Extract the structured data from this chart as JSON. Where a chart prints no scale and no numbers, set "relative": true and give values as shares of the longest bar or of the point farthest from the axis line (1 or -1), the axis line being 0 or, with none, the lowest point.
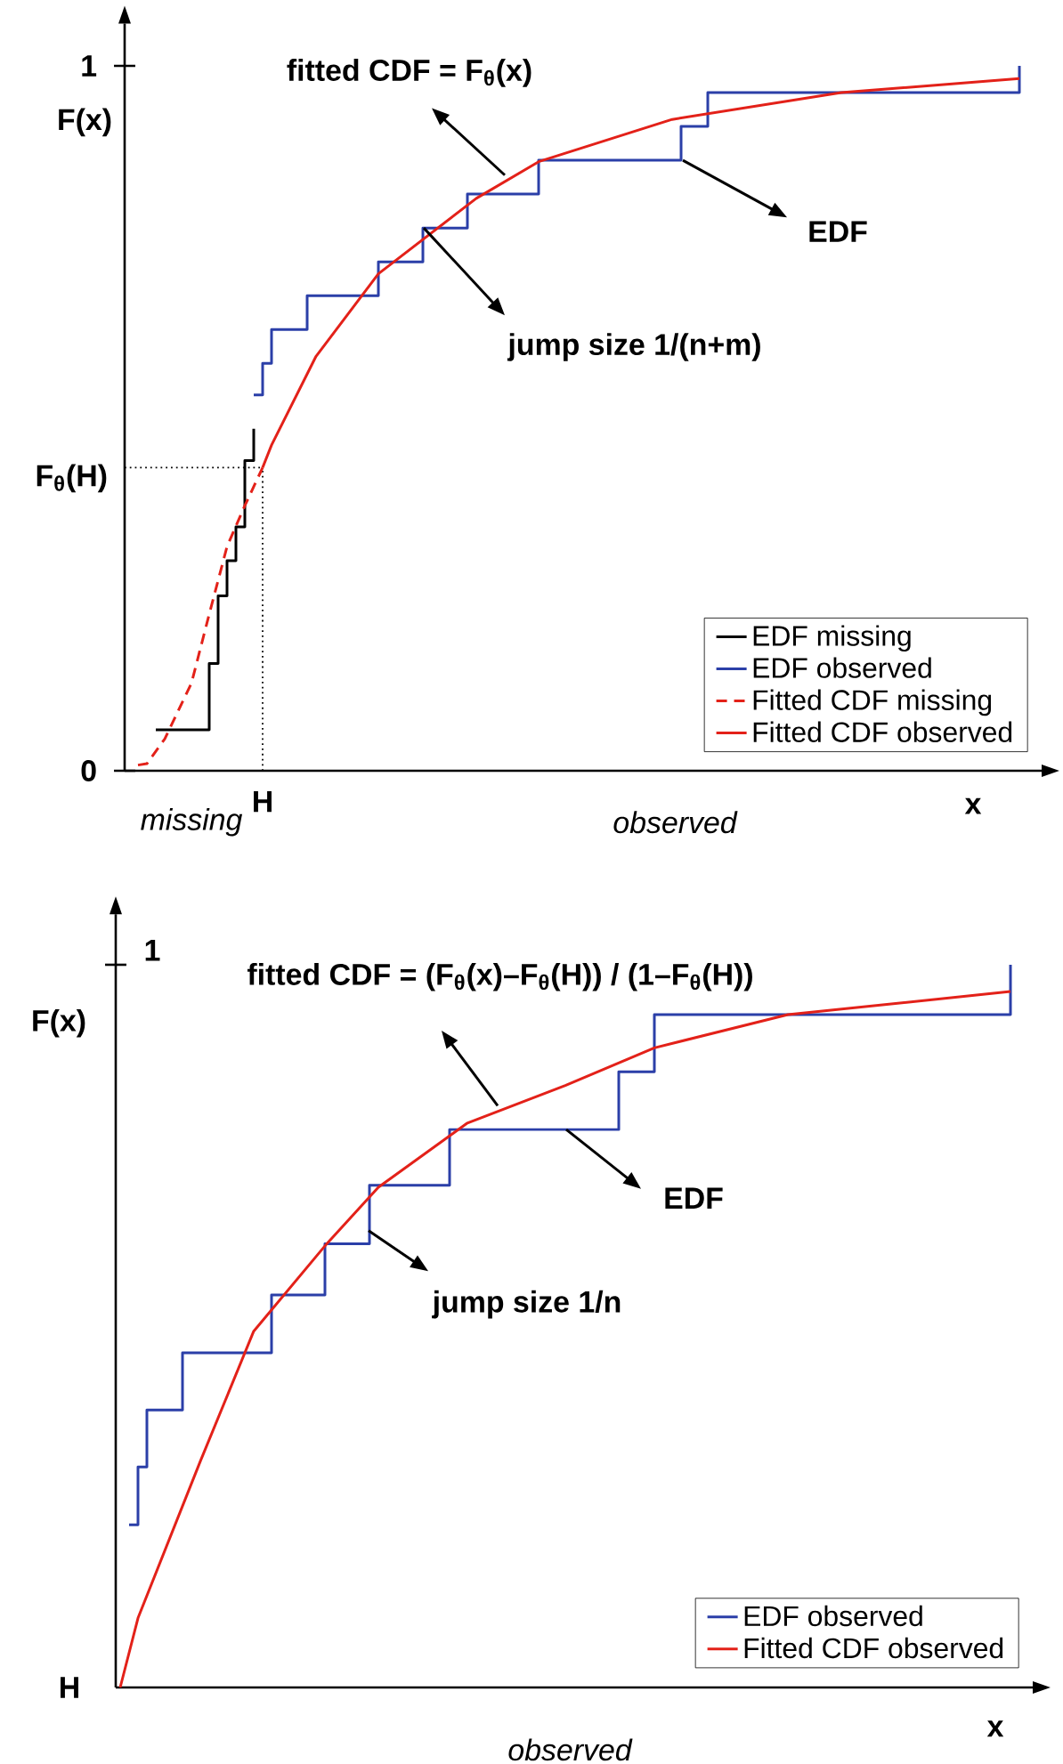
{
  "chart_data": [
    {
      "type": "line",
      "ylim": [
        0,
        1.06
      ],
      "yticks": [
        0,
        1
      ],
      "xlabel": "x",
      "ylabel": "F(x)",
      "legend": "bottom right",
      "categories": [
        null,
        null,
        null,
        null,
        null,
        null,
        null,
        null,
        null,
        null,
        null,
        null,
        null,
        null,
        null,
        "H",
        null,
        null,
        null,
        null,
        null,
        null,
        null,
        null,
        null,
        null,
        null,
        null,
        null,
        null,
        null,
        null,
        null,
        null,
        null,
        null,
        null,
        null,
        null,
        null,
        null,
        null,
        null,
        null,
        null,
        null,
        null,
        null,
        null,
        null,
        null,
        null,
        null,
        null,
        null,
        null,
        null,
        null,
        null,
        null,
        null,
        null,
        null,
        null,
        null,
        null,
        null,
        null,
        null,
        null,
        null,
        null,
        null,
        null,
        null,
        null,
        null,
        null,
        null,
        null,
        null,
        null,
        null,
        null,
        null,
        null,
        null,
        null,
        null,
        null,
        null,
        null,
        null,
        null,
        null,
        null,
        null,
        null,
        null,
        null,
        null,
        null,
        null
      ],
      "series": [
        {
          "name": "EDF missing",
          "type": "step",
          "color": "#000000",
          "values": [
            null,
            null,
            null,
            0.058,
            null,
            null,
            null,
            null,
            null,
            0.152,
            0.248,
            0.298,
            0.346,
            0.44,
            0.485,
            null,
            null,
            null,
            null,
            null,
            null,
            null,
            null,
            null,
            null,
            null,
            null,
            null,
            null,
            null,
            null,
            null,
            null,
            null,
            null,
            null,
            null,
            null,
            null,
            null,
            null,
            null,
            null,
            null,
            null,
            null,
            null,
            null,
            null,
            null,
            null,
            null,
            null,
            null,
            null,
            null,
            null,
            null,
            null,
            null,
            null,
            null,
            null,
            null,
            null,
            null,
            null,
            null,
            null,
            null,
            null,
            null,
            null,
            null,
            null,
            null,
            null,
            null,
            null,
            null,
            null,
            null,
            null,
            null,
            null,
            null,
            null,
            null,
            null,
            null,
            null,
            null,
            null,
            null,
            null,
            null,
            null,
            null,
            null,
            null,
            null,
            null,
            null
          ]
        },
        {
          "name": "EDF observed",
          "type": "step",
          "color": "#2b3fa8",
          "values": [
            null,
            null,
            null,
            null,
            null,
            null,
            null,
            null,
            null,
            null,
            null,
            null,
            null,
            null,
            0.533,
            0.578,
            0.626,
            null,
            null,
            null,
            0.674,
            null,
            null,
            null,
            null,
            null,
            null,
            null,
            0.722,
            null,
            null,
            null,
            null,
            0.77,
            null,
            null,
            null,
            null,
            0.818,
            null,
            null,
            null,
            null,
            null,
            null,
            null,
            0.866,
            null,
            null,
            null,
            null,
            null,
            null,
            null,
            null,
            null,
            null,
            null,
            null,
            null,
            null,
            null,
            0.914,
            null,
            null,
            0.962,
            null,
            null,
            null,
            null,
            null,
            null,
            null,
            null,
            null,
            null,
            null,
            null,
            null,
            null,
            null,
            null,
            null,
            null,
            null,
            null,
            null,
            null,
            null,
            null,
            null,
            null,
            null,
            null,
            null,
            null,
            null,
            null,
            null,
            null,
            1.0,
            null,
            null
          ]
        },
        {
          "name": "Fitted CDF missing",
          "type": "line",
          "line_style": "dashed",
          "color": "#e32119",
          "values": [
            null,
            0.008,
            0.01,
            null,
            0.045,
            null,
            null,
            0.124,
            null,
            0.222,
            null,
            0.318,
            null,
            0.376,
            null,
            0.43,
            null,
            null,
            null,
            null,
            null,
            null,
            null,
            null,
            null,
            null,
            null,
            null,
            null,
            null,
            null,
            null,
            null,
            null,
            null,
            null,
            null,
            null,
            null,
            null,
            null,
            null,
            null,
            null,
            null,
            null,
            null,
            null,
            null,
            null,
            null,
            null,
            null,
            null,
            null,
            null,
            null,
            null,
            null,
            null,
            null,
            null,
            null,
            null,
            null,
            null,
            null,
            null,
            null,
            null,
            null,
            null,
            null,
            null,
            null,
            null,
            null,
            null,
            null,
            null,
            null,
            null,
            null,
            null,
            null,
            null,
            null,
            null,
            null,
            null,
            null,
            null,
            null,
            null,
            null,
            null,
            null,
            null,
            null,
            null,
            null,
            null,
            null
          ]
        },
        {
          "name": "Fitted CDF observed",
          "line_style": "solid",
          "color": "#e32119",
          "values": [
            null,
            null,
            null,
            null,
            null,
            null,
            null,
            null,
            null,
            null,
            null,
            null,
            null,
            null,
            null,
            0.43,
            0.462,
            null,
            null,
            null,
            null,
            0.588,
            null,
            null,
            null,
            null,
            null,
            null,
            0.705,
            null,
            null,
            null,
            null,
            null,
            null,
            null,
            null,
            null,
            null,
            0.812,
            null,
            null,
            null,
            null,
            null,
            null,
            0.864,
            null,
            null,
            null,
            null,
            null,
            null,
            null,
            null,
            null,
            null,
            null,
            null,
            null,
            null,
            0.924,
            null,
            null,
            null,
            null,
            null,
            null,
            null,
            null,
            null,
            null,
            null,
            null,
            null,
            null,
            null,
            null,
            null,
            null,
            0.962,
            null,
            null,
            null,
            null,
            null,
            null,
            null,
            null,
            null,
            null,
            null,
            null,
            null,
            null,
            null,
            null,
            null,
            null,
            null,
            0.982,
            null,
            null
          ]
        }
      ],
      "ref_lines": [
        {
          "axis": "x",
          "value": "H",
          "line_style": "dotted",
          "color": "#000000"
        },
        {
          "axis": "y",
          "value": 0.43,
          "label": "F$_{θ}$(H)",
          "line_style": "dotted",
          "color": "#000000"
        }
      ],
      "annotations": [
        "fitted CDF = F$_{θ}$(x)",
        "EDF",
        "jump size 1/(n+m)",
        "missing",
        "observed"
      ]
    },
    {
      "type": "line",
      "relative": true,
      "xlabel": "x",
      "ylabel": "F(x)",
      "legend": "bottom right",
      "categories": [
        null,
        null,
        null,
        null,
        null,
        null,
        null,
        null,
        null,
        null,
        null,
        null,
        null,
        null,
        null,
        null,
        null,
        null,
        null,
        null,
        null,
        null,
        null,
        null,
        null,
        null,
        null,
        null,
        null,
        null,
        null,
        null,
        null,
        null,
        null,
        null,
        null,
        null,
        null,
        null,
        null,
        null,
        null,
        null,
        null,
        null,
        null,
        null,
        null,
        null,
        null,
        null,
        null,
        null,
        null,
        null,
        null,
        null,
        null,
        null,
        null,
        null,
        null,
        null,
        null,
        null,
        null,
        null,
        null,
        null,
        null,
        null,
        null,
        null,
        null,
        null,
        null,
        null,
        null,
        null,
        null,
        null,
        null,
        null,
        null,
        null,
        null,
        null,
        null,
        null,
        null,
        null,
        null,
        null,
        null,
        null,
        null,
        null,
        null,
        null,
        null,
        null,
        null
      ],
      "series": [
        {
          "name": "EDF observed",
          "type": "step",
          "color": "#2b3fa8",
          "values": [
            null,
            0.225,
            0.305,
            0.384,
            null,
            null,
            null,
            0.463,
            null,
            null,
            null,
            null,
            null,
            null,
            null,
            null,
            null,
            0.543,
            null,
            null,
            null,
            null,
            null,
            0.614,
            null,
            null,
            null,
            null,
            0.695,
            null,
            null,
            null,
            null,
            null,
            null,
            null,
            null,
            0.772,
            null,
            null,
            null,
            null,
            null,
            null,
            null,
            null,
            null,
            null,
            null,
            null,
            null,
            null,
            null,
            null,
            null,
            null,
            0.852,
            null,
            null,
            null,
            0.931,
            null,
            null,
            null,
            null,
            null,
            null,
            null,
            null,
            null,
            null,
            null,
            null,
            null,
            null,
            null,
            null,
            null,
            null,
            null,
            null,
            null,
            null,
            null,
            null,
            null,
            null,
            null,
            null,
            null,
            null,
            null,
            null,
            null,
            null,
            null,
            null,
            null,
            null,
            null,
            1.0,
            null,
            null
          ]
        },
        {
          "name": "Fitted CDF observed",
          "line_style": "solid",
          "color": "#e32119",
          "values": [
            0,
            null,
            0.096,
            null,
            null,
            null,
            null,
            null,
            null,
            0.313,
            null,
            null,
            null,
            null,
            null,
            0.493,
            null,
            null,
            null,
            null,
            null,
            null,
            null,
            0.611,
            null,
            null,
            null,
            null,
            null,
            0.692,
            null,
            null,
            null,
            null,
            null,
            null,
            null,
            null,
            null,
            0.781,
            null,
            null,
            null,
            null,
            null,
            null,
            null,
            null,
            null,
            null,
            0.833,
            null,
            null,
            null,
            null,
            null,
            null,
            null,
            null,
            null,
            0.885,
            null,
            null,
            null,
            null,
            null,
            null,
            null,
            null,
            null,
            null,
            null,
            null,
            null,
            null,
            0.931,
            null,
            null,
            null,
            null,
            null,
            null,
            null,
            null,
            null,
            null,
            null,
            null,
            null,
            null,
            null,
            null,
            null,
            null,
            null,
            null,
            null,
            null,
            null,
            null,
            0.963,
            null,
            null
          ]
        }
      ],
      "annotations": [
        "fitted CDF = (F$_{θ}$(x)–F$_{θ}$(H)) / (1–F$_{θ}$(H))",
        "EDF",
        "jump size 1/n",
        "observed",
        "1",
        "H"
      ]
    }
  ]
}
